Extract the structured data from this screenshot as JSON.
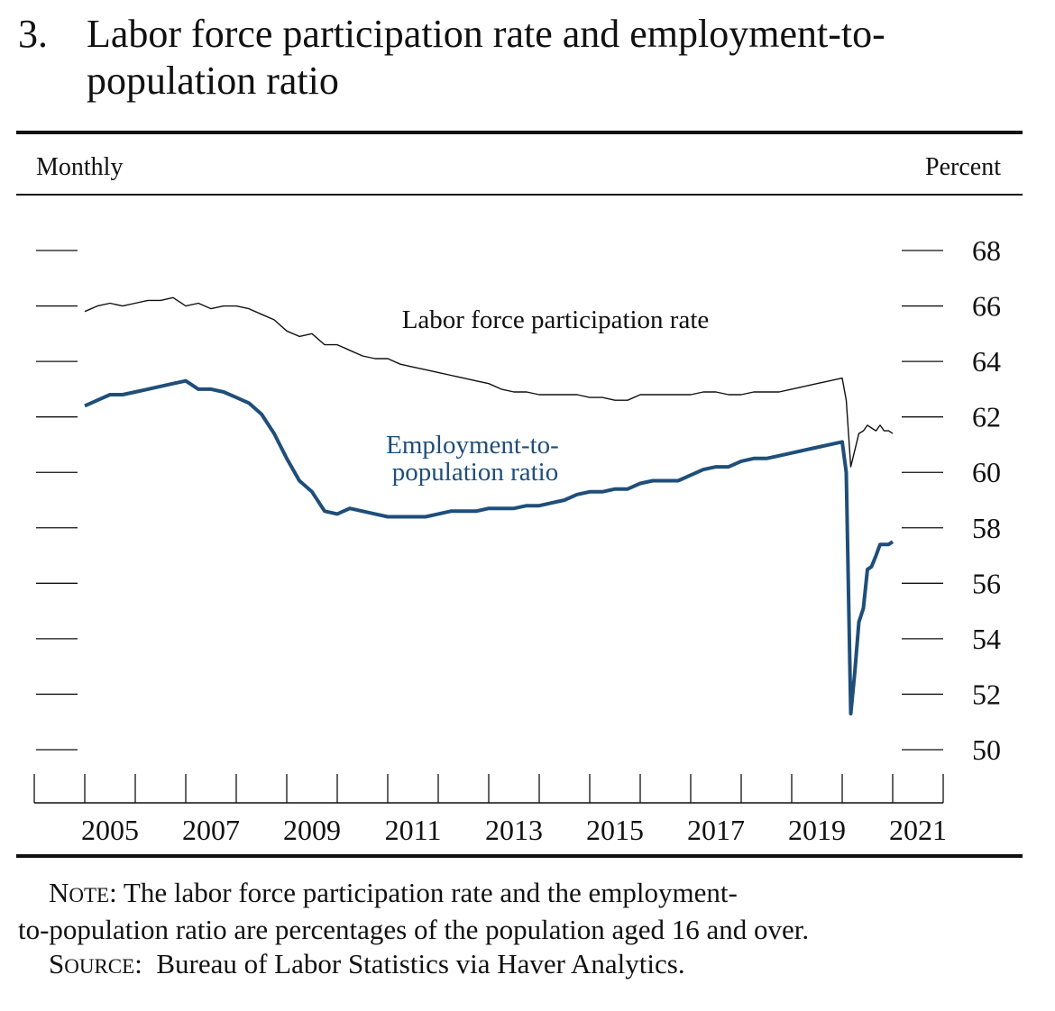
{
  "figure": {
    "number": "3.",
    "title": "Labor force participation rate and employment-to-population ratio",
    "frequency": "Monthly",
    "unit": "Percent"
  },
  "chart_data": {
    "type": "line",
    "x_ticks": [
      "2005",
      "2007",
      "2009",
      "2011",
      "2013",
      "2015",
      "2017",
      "2019",
      "2021"
    ],
    "y_ticks": [
      "68",
      "66",
      "64",
      "62",
      "60",
      "58",
      "56",
      "54",
      "52",
      "50"
    ],
    "ylim": [
      50,
      68
    ],
    "xlim": [
      2004.0,
      2022.0
    ],
    "series": [
      {
        "name": "Labor force participation rate",
        "color": "#111111",
        "x": [
          2005.0,
          2005.25,
          2005.5,
          2005.75,
          2006.0,
          2006.25,
          2006.5,
          2006.75,
          2007.0,
          2007.25,
          2007.5,
          2007.75,
          2008.0,
          2008.25,
          2008.5,
          2008.75,
          2009.0,
          2009.25,
          2009.5,
          2009.75,
          2010.0,
          2010.25,
          2010.5,
          2010.75,
          2011.0,
          2011.25,
          2011.5,
          2011.75,
          2012.0,
          2012.25,
          2012.5,
          2012.75,
          2013.0,
          2013.25,
          2013.5,
          2013.75,
          2014.0,
          2014.25,
          2014.5,
          2014.75,
          2015.0,
          2015.25,
          2015.5,
          2015.75,
          2016.0,
          2016.25,
          2016.5,
          2016.75,
          2017.0,
          2017.25,
          2017.5,
          2017.75,
          2018.0,
          2018.25,
          2018.5,
          2018.75,
          2019.0,
          2019.25,
          2019.5,
          2019.75,
          2020.0,
          2020.08,
          2020.17,
          2020.25,
          2020.33,
          2020.42,
          2020.5,
          2020.58,
          2020.67,
          2020.75,
          2020.83,
          2020.92,
          2021.0
        ],
        "values": [
          65.8,
          66.0,
          66.1,
          66.0,
          66.1,
          66.2,
          66.2,
          66.3,
          66.0,
          66.1,
          65.9,
          66.0,
          66.0,
          65.9,
          65.7,
          65.5,
          65.1,
          64.9,
          65.0,
          64.6,
          64.6,
          64.4,
          64.2,
          64.1,
          64.1,
          63.9,
          63.8,
          63.7,
          63.6,
          63.5,
          63.4,
          63.3,
          63.2,
          63.0,
          62.9,
          62.9,
          62.8,
          62.8,
          62.8,
          62.8,
          62.7,
          62.7,
          62.6,
          62.6,
          62.8,
          62.8,
          62.8,
          62.8,
          62.8,
          62.9,
          62.9,
          62.8,
          62.8,
          62.9,
          62.9,
          62.9,
          63.0,
          63.1,
          63.2,
          63.3,
          63.4,
          62.6,
          60.2,
          60.8,
          61.4,
          61.5,
          61.7,
          61.6,
          61.5,
          61.7,
          61.5,
          61.5,
          61.4
        ]
      },
      {
        "name": "Employment-to-population ratio",
        "color": "#1f4e79",
        "x": [
          2005.0,
          2005.25,
          2005.5,
          2005.75,
          2006.0,
          2006.25,
          2006.5,
          2006.75,
          2007.0,
          2007.25,
          2007.5,
          2007.75,
          2008.0,
          2008.25,
          2008.5,
          2008.75,
          2009.0,
          2009.25,
          2009.5,
          2009.75,
          2010.0,
          2010.25,
          2010.5,
          2010.75,
          2011.0,
          2011.25,
          2011.5,
          2011.75,
          2012.0,
          2012.25,
          2012.5,
          2012.75,
          2013.0,
          2013.25,
          2013.5,
          2013.75,
          2014.0,
          2014.25,
          2014.5,
          2014.75,
          2015.0,
          2015.25,
          2015.5,
          2015.75,
          2016.0,
          2016.25,
          2016.5,
          2016.75,
          2017.0,
          2017.25,
          2017.5,
          2017.75,
          2018.0,
          2018.25,
          2018.5,
          2018.75,
          2019.0,
          2019.25,
          2019.5,
          2019.75,
          2020.0,
          2020.08,
          2020.17,
          2020.25,
          2020.33,
          2020.42,
          2020.5,
          2020.58,
          2020.67,
          2020.75,
          2020.83,
          2020.92,
          2021.0
        ],
        "values": [
          62.4,
          62.6,
          62.8,
          62.8,
          62.9,
          63.0,
          63.1,
          63.2,
          63.3,
          63.0,
          63.0,
          62.9,
          62.7,
          62.5,
          62.1,
          61.4,
          60.5,
          59.7,
          59.3,
          58.6,
          58.5,
          58.7,
          58.6,
          58.5,
          58.4,
          58.4,
          58.4,
          58.4,
          58.5,
          58.6,
          58.6,
          58.6,
          58.7,
          58.7,
          58.7,
          58.8,
          58.8,
          58.9,
          59.0,
          59.2,
          59.3,
          59.3,
          59.4,
          59.4,
          59.6,
          59.7,
          59.7,
          59.7,
          59.9,
          60.1,
          60.2,
          60.2,
          60.4,
          60.5,
          60.5,
          60.6,
          60.7,
          60.8,
          60.9,
          61.0,
          61.1,
          60.0,
          51.3,
          52.8,
          54.6,
          55.1,
          56.5,
          56.6,
          57.0,
          57.4,
          57.4,
          57.4,
          57.5
        ]
      }
    ],
    "annotations": [
      {
        "text": "Labor force participation rate",
        "series": 0
      },
      {
        "text": "Employment-to-",
        "series": 1
      },
      {
        "text": "population ratio",
        "series": 1
      }
    ]
  },
  "note": {
    "note_label": "Note",
    "note_text": "The labor force participation rate and the employment-",
    "note_text2": "to-population ratio are percentages of the population aged 16 and over.",
    "source_label": "Source",
    "source_text": "Bureau of Labor Statistics via Haver Analytics."
  }
}
